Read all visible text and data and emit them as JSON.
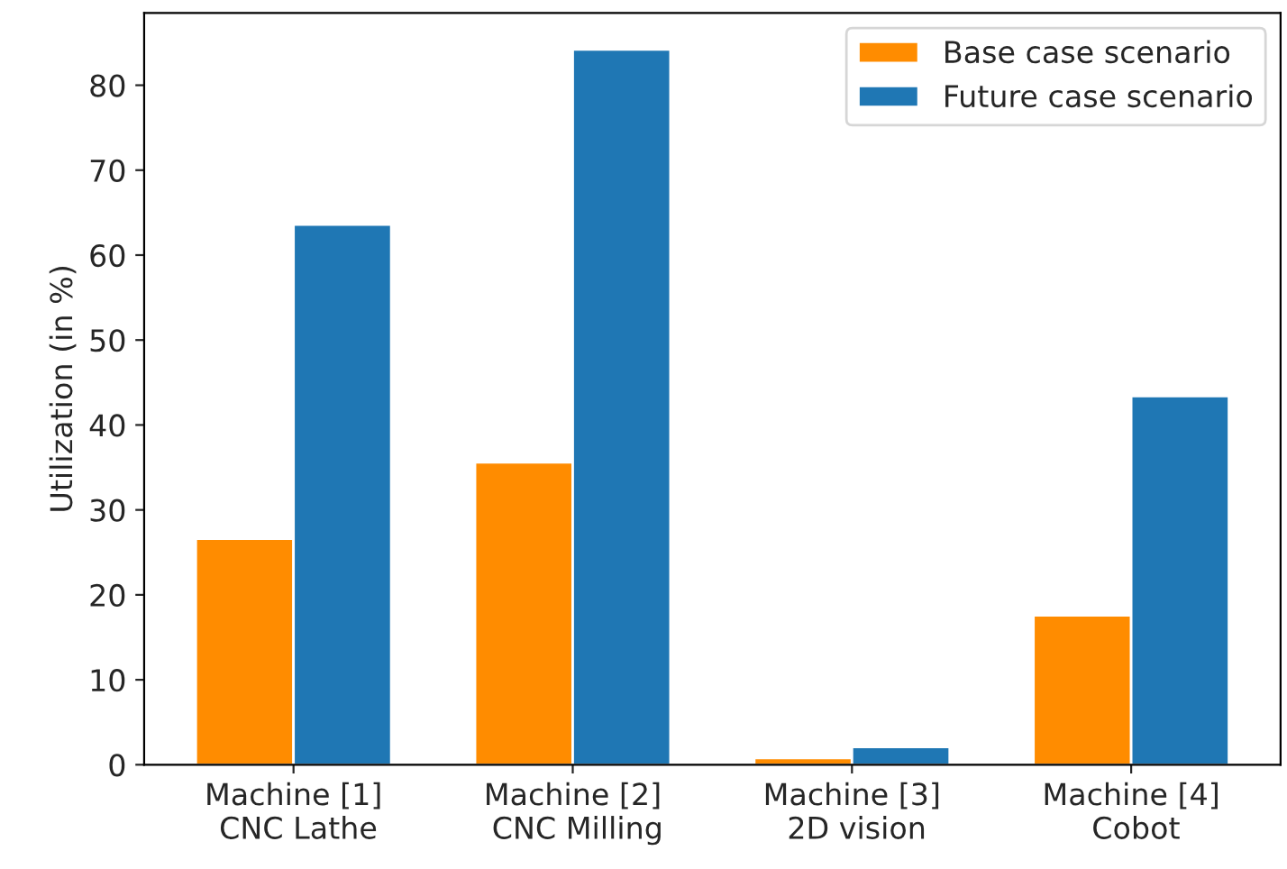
{
  "chart_data": {
    "type": "bar",
    "ylabel": "Utilization (in %)",
    "categories": [
      "Machine [1]\n CNC Lathe",
      "Machine [2]\n CNC Milling",
      "Machine [3]\n 2D vision",
      "Machine [4]\n Cobot"
    ],
    "series": [
      {
        "name": "Base case scenario",
        "color": "#ff8c00",
        "values": [
          26.6,
          35.6,
          0.8,
          17.6
        ]
      },
      {
        "name": "Future case scenario",
        "color": "#1f77b4",
        "values": [
          63.6,
          84.2,
          2.1,
          43.4
        ]
      }
    ],
    "ylim": [
      0,
      88.5
    ],
    "yticks": [
      0,
      10,
      20,
      30,
      40,
      50,
      60,
      70,
      80
    ],
    "grid": false,
    "legend": "upper right"
  }
}
